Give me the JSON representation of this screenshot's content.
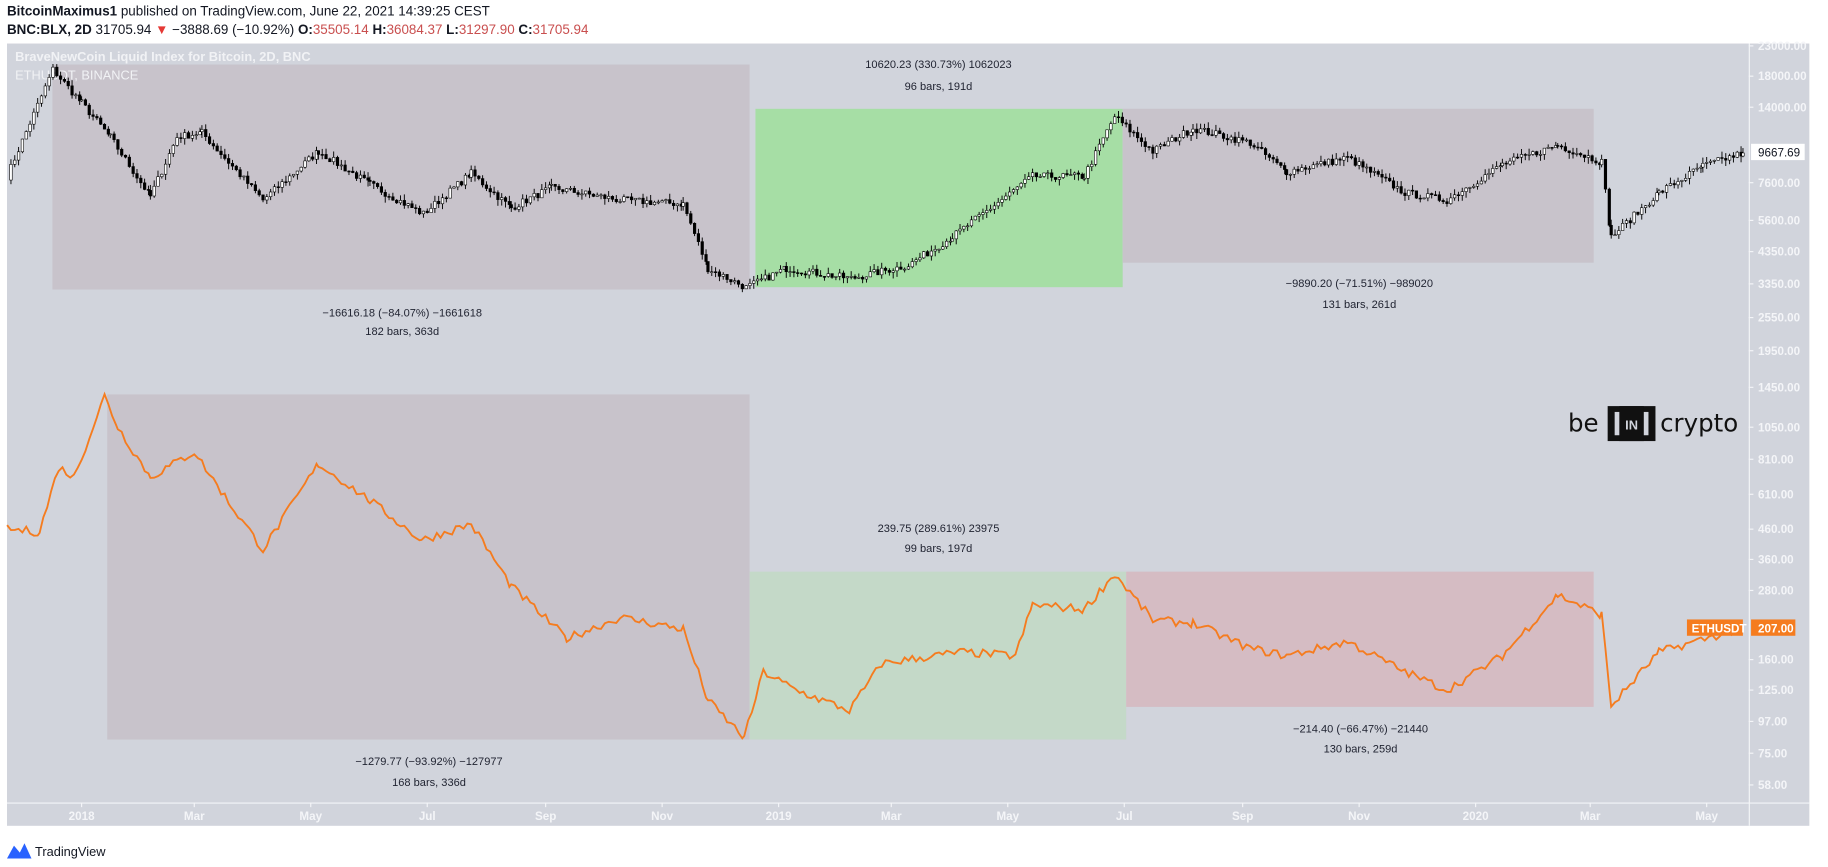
{
  "header": {
    "author": "BitcoinMaximus1",
    "published": "published on TradingView.com, June 22, 2021 14:39:25 CEST",
    "symbol": "BNC:BLX, 2D",
    "last": "31705.94",
    "change": "−3888.69 (−10.92%)",
    "o_label": "O:",
    "o": "35505.14",
    "h_label": "H:",
    "h": "36084.37",
    "l_label": "L:",
    "l": "31297.90",
    "c_label": "C:",
    "c": "31705.94",
    "down_color": "#e53935"
  },
  "legend": {
    "main": "BraveNewCoin Liquid Index for Bitcoin, 2D, BNC",
    "compare": "ETHUSDT, BINANCE"
  },
  "price_axis": {
    "ticks": [
      "23000.00",
      "18000.00",
      "14000.00",
      "7600.00",
      "5600.00",
      "4350.00",
      "3350.00",
      "2550.00",
      "1950.00",
      "1450.00",
      "1050.00",
      "810.00",
      "610.00",
      "460.00",
      "360.00",
      "280.00",
      "160.00",
      "125.00",
      "97.00",
      "75.00",
      "58.00"
    ],
    "btc_last": "9667.69",
    "eth_last": "207.00",
    "eth_tag": "ETHUSDT",
    "eth_color": "#f57c1f"
  },
  "time_axis": {
    "ticks": [
      {
        "label": "2018",
        "date": "2018-01-01"
      },
      {
        "label": "Mar",
        "date": "2018-03-01"
      },
      {
        "label": "May",
        "date": "2018-05-01"
      },
      {
        "label": "Jul",
        "date": "2018-07-01"
      },
      {
        "label": "Sep",
        "date": "2018-09-01"
      },
      {
        "label": "Nov",
        "date": "2018-11-01"
      },
      {
        "label": "2019",
        "date": "2019-01-01"
      },
      {
        "label": "Mar",
        "date": "2019-03-01"
      },
      {
        "label": "May",
        "date": "2019-05-01"
      },
      {
        "label": "Jul",
        "date": "2019-07-01"
      },
      {
        "label": "Sep",
        "date": "2019-09-01"
      },
      {
        "label": "Nov",
        "date": "2019-11-01"
      },
      {
        "label": "2020",
        "date": "2020-01-01"
      },
      {
        "label": "Mar",
        "date": "2020-03-01"
      },
      {
        "label": "May",
        "date": "2020-05-01"
      }
    ]
  },
  "measurements": {
    "btc_drop": {
      "line1": "−16616.18 (−84.07%) −1661618",
      "line2": "182 bars, 363d",
      "color": "#c8c3cb"
    },
    "btc_rise": {
      "line1": "10620.23 (330.73%) 1062023",
      "line2": "96 bars, 191d",
      "color": "#a6dea5"
    },
    "btc_drop2": {
      "line1": "−9890.20 (−71.51%) −989020",
      "line2": "131 bars, 261d",
      "color": "#c8c3cb"
    },
    "eth_drop": {
      "line1": "−1279.77 (−93.92%) −127977",
      "line2": "168 bars, 336d",
      "color": "#c8c3cb"
    },
    "eth_rise": {
      "line1": "239.75 (289.61%) 23975",
      "line2": "99 bars, 197d",
      "color": "#c4d9c8"
    },
    "eth_drop2": {
      "line1": "−214.40 (−66.47%) −21440",
      "line2": "130 bars, 259d",
      "color": "#d5bcc3"
    }
  },
  "watermark": {
    "logo_text": "be[IN]crypto"
  },
  "footer": {
    "brand": "TradingView"
  },
  "chart_data": {
    "type": "line",
    "scale": "log",
    "ylim": [
      58,
      23000
    ],
    "xlim": [
      "2017-11-23",
      "2020-05-23"
    ],
    "grid": false,
    "series": [
      {
        "name": "BraveNewCoin Liquid Index for Bitcoin, 2D, BNC",
        "style": "candlestick",
        "points": [
          [
            "2017-11-23",
            8000
          ],
          [
            "2017-12-17",
            19000
          ],
          [
            "2018-01-01",
            14500
          ],
          [
            "2018-01-16",
            11000
          ],
          [
            "2018-02-06",
            6800
          ],
          [
            "2018-02-20",
            11000
          ],
          [
            "2018-03-05",
            11400
          ],
          [
            "2018-04-06",
            6600
          ],
          [
            "2018-05-05",
            9800
          ],
          [
            "2018-06-01",
            7500
          ],
          [
            "2018-06-29",
            5900
          ],
          [
            "2018-07-24",
            8200
          ],
          [
            "2018-08-14",
            6200
          ],
          [
            "2018-09-04",
            7300
          ],
          [
            "2018-10-10",
            6600
          ],
          [
            "2018-11-12",
            6400
          ],
          [
            "2018-11-25",
            3800
          ],
          [
            "2018-12-15",
            3250
          ],
          [
            "2019-01-05",
            3800
          ],
          [
            "2019-02-08",
            3500
          ],
          [
            "2019-03-10",
            3900
          ],
          [
            "2019-04-02",
            4900
          ],
          [
            "2019-05-14",
            8000
          ],
          [
            "2019-06-10",
            8000
          ],
          [
            "2019-06-26",
            13000
          ],
          [
            "2019-07-16",
            9800
          ],
          [
            "2019-08-06",
            11800
          ],
          [
            "2019-09-05",
            10500
          ],
          [
            "2019-09-24",
            8300
          ],
          [
            "2019-10-26",
            9300
          ],
          [
            "2019-11-25",
            7000
          ],
          [
            "2019-12-17",
            6600
          ],
          [
            "2020-01-15",
            8800
          ],
          [
            "2020-02-13",
            10300
          ],
          [
            "2020-03-07",
            9000
          ],
          [
            "2020-03-12",
            4900
          ],
          [
            "2020-04-06",
            7000
          ],
          [
            "2020-04-29",
            8700
          ],
          [
            "2020-05-20",
            9667.69
          ]
        ]
      },
      {
        "name": "ETHUSDT, BINANCE",
        "style": "line",
        "color": "#f57c1f",
        "points": [
          [
            "2017-11-23",
            460
          ],
          [
            "2017-12-10",
            450
          ],
          [
            "2017-12-20",
            760
          ],
          [
            "2017-12-28",
            700
          ],
          [
            "2018-01-13",
            1350
          ],
          [
            "2018-01-20",
            1050
          ],
          [
            "2018-02-06",
            700
          ],
          [
            "2018-03-01",
            860
          ],
          [
            "2018-03-20",
            560
          ],
          [
            "2018-04-06",
            390
          ],
          [
            "2018-05-05",
            780
          ],
          [
            "2018-06-01",
            580
          ],
          [
            "2018-06-28",
            420
          ],
          [
            "2018-07-24",
            480
          ],
          [
            "2018-08-14",
            290
          ],
          [
            "2018-09-12",
            190
          ],
          [
            "2018-10-10",
            225
          ],
          [
            "2018-11-12",
            205
          ],
          [
            "2018-11-25",
            115
          ],
          [
            "2018-12-14",
            85
          ],
          [
            "2018-12-24",
            145
          ],
          [
            "2019-01-10",
            125
          ],
          [
            "2019-02-07",
            106
          ],
          [
            "2019-02-24",
            155
          ],
          [
            "2019-04-06",
            170
          ],
          [
            "2019-05-05",
            165
          ],
          [
            "2019-05-14",
            250
          ],
          [
            "2019-06-10",
            240
          ],
          [
            "2019-06-26",
            320
          ],
          [
            "2019-07-16",
            220
          ],
          [
            "2019-08-06",
            215
          ],
          [
            "2019-09-05",
            175
          ],
          [
            "2019-09-24",
            165
          ],
          [
            "2019-10-26",
            185
          ],
          [
            "2019-11-25",
            145
          ],
          [
            "2019-12-17",
            125
          ],
          [
            "2020-01-15",
            165
          ],
          [
            "2020-02-13",
            270
          ],
          [
            "2020-03-07",
            230
          ],
          [
            "2020-03-12",
            110
          ],
          [
            "2020-04-06",
            170
          ],
          [
            "2020-05-20",
            207
          ]
        ]
      }
    ]
  }
}
